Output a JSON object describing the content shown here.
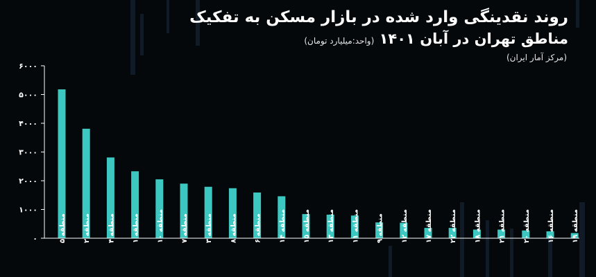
{
  "title": {
    "line1": "روند نقدینگی وارد شده در بازار مسکن به تفکیک",
    "line2": "مناطق تهران در آبان ۱۴۰۱",
    "unit": "(واحد:میلیارد تومان)",
    "source": "(مرکز آمار ایران)"
  },
  "colors": {
    "bar": "#3cc8c0",
    "background": "#05080b",
    "axis": "#ffffff"
  },
  "chart_data": {
    "type": "bar",
    "categories": [
      "منطقه ۵",
      "منطقه ۲",
      "منطقه ۴",
      "منطقه ۱",
      "منطقه ۱۰",
      "منطقه ۷",
      "منطقه ۳",
      "منطقه ۸",
      "منطقه ۶",
      "منطقه ۱۴",
      "منطقه ۱۵",
      "منطقه ۱۳",
      "منطقه ۱۱",
      "منطقه ۹",
      "منطقه ۱۲",
      "منطقه ۱۷",
      "منطقه ۲۲",
      "منطقه ۱۸",
      "منطقه ۲۱",
      "منطقه ۲۰",
      "منطقه ۱۶",
      "منطقه ۱۹"
    ],
    "values": [
      5180,
      3810,
      2810,
      2330,
      2050,
      1900,
      1790,
      1740,
      1590,
      1460,
      840,
      820,
      790,
      550,
      540,
      360,
      360,
      300,
      300,
      270,
      240,
      180
    ],
    "ylim": [
      0,
      6000
    ],
    "yticks": [
      0,
      1000,
      2000,
      3000,
      4000,
      5000,
      6000
    ],
    "ytick_labels": [
      "۰",
      "۱۰۰۰",
      "۲۰۰۰",
      "۳۰۰۰",
      "۴۰۰۰",
      "۵۰۰۰",
      "۶۰۰۰"
    ],
    "grid": false,
    "legend": "none"
  }
}
